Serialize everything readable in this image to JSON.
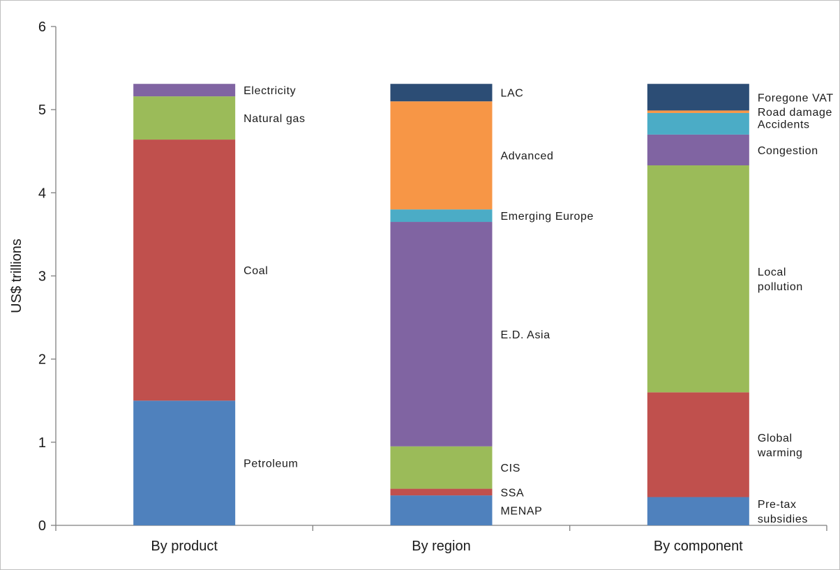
{
  "chart_data": {
    "type": "bar",
    "stacked": true,
    "ylabel": "US$ trillions",
    "ylim": [
      0,
      6
    ],
    "yticks": [
      0,
      1,
      2,
      3,
      4,
      5,
      6
    ],
    "grid": false,
    "legend": "none",
    "categories": [
      "By product",
      "By region",
      "By component"
    ],
    "stacks": [
      {
        "category": "By product",
        "segments": [
          {
            "name": "Petroleum",
            "value": 1.5,
            "color": "#4f81bd"
          },
          {
            "name": "Coal",
            "value": 3.14,
            "color": "#c0504d"
          },
          {
            "name": "Natural gas",
            "value": 0.52,
            "color": "#9bbb59"
          },
          {
            "name": "Electricity",
            "value": 0.15,
            "color": "#8064a2"
          }
        ]
      },
      {
        "category": "By region",
        "segments": [
          {
            "name": "MENAP",
            "value": 0.36,
            "color": "#4f81bd"
          },
          {
            "name": "SSA",
            "value": 0.08,
            "color": "#c0504d"
          },
          {
            "name": "CIS",
            "value": 0.51,
            "color": "#9bbb59"
          },
          {
            "name": "E.D. Asia",
            "value": 2.7,
            "color": "#8064a2"
          },
          {
            "name": "Emerging Europe",
            "value": 0.15,
            "color": "#4bacc6"
          },
          {
            "name": "Advanced",
            "value": 1.3,
            "color": "#f79646"
          },
          {
            "name": "LAC",
            "value": 0.21,
            "color": "#2c4d75"
          }
        ]
      },
      {
        "category": "By component",
        "segments": [
          {
            "name": "Pre-tax\nsubsidies",
            "value": 0.34,
            "color": "#4f81bd"
          },
          {
            "name": "Global\nwarming",
            "value": 1.26,
            "color": "#c0504d"
          },
          {
            "name": "Local\npollution",
            "value": 2.73,
            "color": "#9bbb59"
          },
          {
            "name": "Congestion",
            "value": 0.37,
            "color": "#8064a2"
          },
          {
            "name": "Accidents",
            "value": 0.26,
            "color": "#4bacc6"
          },
          {
            "name": "Road damage",
            "value": 0.03,
            "color": "#f79646"
          },
          {
            "name": "Foregone VAT",
            "value": 0.32,
            "color": "#2c4d75"
          }
        ]
      }
    ]
  }
}
